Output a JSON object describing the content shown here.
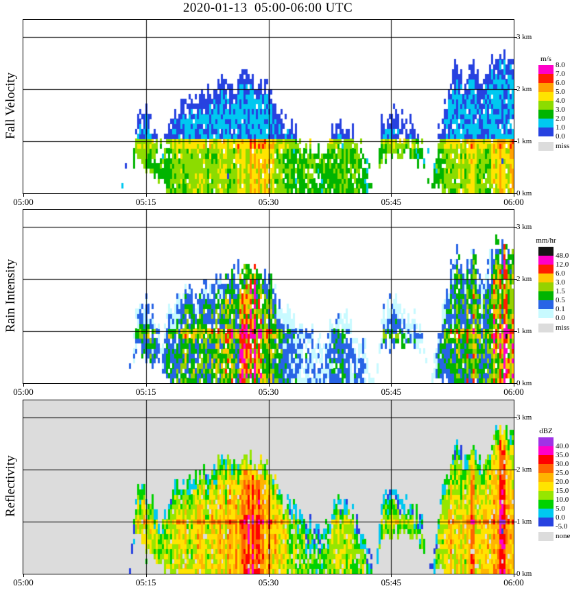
{
  "title": "2020-01-13  05:00-06:00 UTC",
  "time_axis": {
    "labels": [
      "05:00",
      "05:15",
      "05:30",
      "05:45",
      "06:00"
    ],
    "grid_minutes": [
      15,
      30,
      45
    ],
    "range_minutes": [
      0,
      60
    ]
  },
  "height_axis": {
    "labels": [
      "0 km",
      "1 km",
      "2 km",
      "3 km"
    ],
    "grid_km": [
      1,
      2,
      3
    ],
    "range_km": [
      0,
      3.33
    ]
  },
  "panels": [
    {
      "id": "fall-velocity",
      "ylabel": "Fall Velocity",
      "unit": "m/s",
      "missing_label": "miss",
      "missing_color": "#DCDCDC",
      "background": "#FFFFFF",
      "scale": {
        "labels": [
          "8.0",
          "7.0",
          "6.0",
          "5.0",
          "4.0",
          "3.0",
          "2.0",
          "1.0",
          "0.0"
        ],
        "label_offset": 0,
        "edges": [
          0,
          1,
          2,
          3,
          4,
          5,
          6,
          7,
          99
        ],
        "colors": [
          "#2742E0",
          "#00C8F0",
          "#00B400",
          "#8CDC00",
          "#FFE400",
          "#FFA000",
          "#FF1E00",
          "#FF00C8"
        ],
        "clamp_low": true
      },
      "field": {
        "kind": "velocity",
        "seed": 11,
        "dropout": 1.0,
        "sb": 0.4,
        "sr": 0.9,
        "rb": 1.0,
        "rg": 3.4,
        "rr": 1.3,
        "bb": 1.0
      }
    },
    {
      "id": "rain-intensity",
      "ylabel": "Rain Intensity",
      "unit": "mm/hr",
      "missing_label": "miss",
      "missing_color": "#DCDCDC",
      "background": "#FFFFFF",
      "scale": {
        "labels": [
          "48.0",
          "12.0",
          "6.0",
          "3.0",
          "1.5",
          "0.5",
          "0.1",
          "0.0"
        ],
        "label_offset": 1,
        "edges": [
          0,
          0.1,
          0.5,
          1.5,
          3,
          6,
          12,
          48,
          999
        ],
        "colors": [
          "#C8FAFF",
          "#2864E6",
          "#00B400",
          "#96D200",
          "#FFC800",
          "#FF1E00",
          "#FF00C8",
          "#141414"
        ],
        "clamp_low": true
      },
      "field": {
        "kind": "rain",
        "seed": 22,
        "dropout": 1.05,
        "r0": 0.025,
        "g": 2.55,
        "s": 1.0
      }
    },
    {
      "id": "reflectivity",
      "ylabel": "Reflectivity",
      "unit": "dBZ",
      "missing_label": "none",
      "missing_color": "#DCDCDC",
      "background": "#DCDCDC",
      "scale": {
        "labels": [
          "40.0",
          "35.0",
          "30.0",
          "25.0",
          "20.0",
          "15.0",
          "10.0",
          "5.0",
          "0.0",
          "-5.0"
        ],
        "label_offset": 1,
        "edges": [
          -5,
          0,
          5,
          10,
          15,
          20,
          25,
          30,
          35,
          40,
          99
        ],
        "colors": [
          "#2742E0",
          "#00C8F0",
          "#00D200",
          "#96E600",
          "#FFE400",
          "#FFB400",
          "#FF6400",
          "#FF0000",
          "#FF00C8",
          "#A032E6"
        ],
        "clamp_low": false
      },
      "field": {
        "kind": "reflectivity",
        "seed": 33,
        "dropout": 0.75,
        "z0": -3,
        "zg": 30,
        "zr": 9,
        "za": 5,
        "bb": 6
      }
    }
  ],
  "chart_data": {
    "type": "heatmap",
    "title": "2020-01-13  05:00-06:00 UTC",
    "variables": [
      "fall_velocity_m_s",
      "rain_intensity_mm_hr",
      "reflectivity_dbz"
    ],
    "x": {
      "tick_labels": [
        "05:00",
        "05:15",
        "05:30",
        "05:45",
        "06:00"
      ],
      "range_minutes_after_0500": [
        0,
        60
      ]
    },
    "y": {
      "tick_labels_km": [
        0,
        1,
        2,
        3
      ],
      "range_km": [
        0,
        3.33
      ]
    },
    "melting_layer_km": 1.05,
    "echo_top_km": [
      0,
      0,
      0,
      0,
      0,
      0,
      0,
      0,
      0,
      0,
      0,
      0,
      0,
      0,
      1.6,
      1.7,
      1.3,
      1.0,
      1.5,
      1.7,
      1.8,
      1.8,
      1.9,
      2.0,
      2.15,
      2.2,
      2.15,
      2.3,
      2.25,
      2.2,
      2.1,
      1.7,
      1.4,
      1.3,
      1.1,
      1.0,
      0.9,
      0.9,
      1.3,
      1.35,
      1.25,
      1.0,
      0.7,
      0,
      1.5,
      1.65,
      1.55,
      1.4,
      1.25,
      1.0,
      0,
      1.3,
      1.9,
      2.6,
      2.2,
      2.5,
      2.1,
      2.4,
      2.75,
      2.7,
      2.6
    ],
    "echo_base_km": [
      0,
      0,
      0,
      0,
      0,
      0,
      0,
      0,
      0,
      0,
      0,
      0,
      0,
      0,
      0.8,
      0.5,
      0.3,
      0.2,
      0,
      0,
      0,
      0,
      0,
      0,
      0,
      0,
      0,
      0,
      0,
      0,
      0,
      0,
      0,
      0,
      0,
      0,
      0,
      0,
      0,
      0,
      0,
      0,
      0,
      0,
      0.75,
      0.7,
      0.75,
      0.8,
      0.65,
      0.55,
      0,
      0.1,
      0,
      0,
      0,
      0,
      0,
      0,
      0,
      0,
      0
    ],
    "intensity_index": [
      0,
      0,
      0,
      0,
      0,
      0,
      0,
      0,
      0,
      0,
      0,
      0,
      0,
      0,
      0.45,
      0.5,
      0.4,
      0.3,
      0.4,
      0.45,
      0.5,
      0.5,
      0.55,
      0.55,
      0.6,
      0.6,
      0.65,
      0.8,
      0.9,
      1.0,
      0.85,
      0.5,
      0.4,
      0.35,
      0.3,
      0.3,
      0.25,
      0.25,
      0.4,
      0.4,
      0.35,
      0.3,
      0.25,
      0,
      0.35,
      0.4,
      0.35,
      0.3,
      0.3,
      0.25,
      0,
      0.4,
      0.5,
      0.6,
      0.5,
      0.85,
      0.5,
      0.6,
      0.95,
      0.9,
      0.8
    ]
  }
}
